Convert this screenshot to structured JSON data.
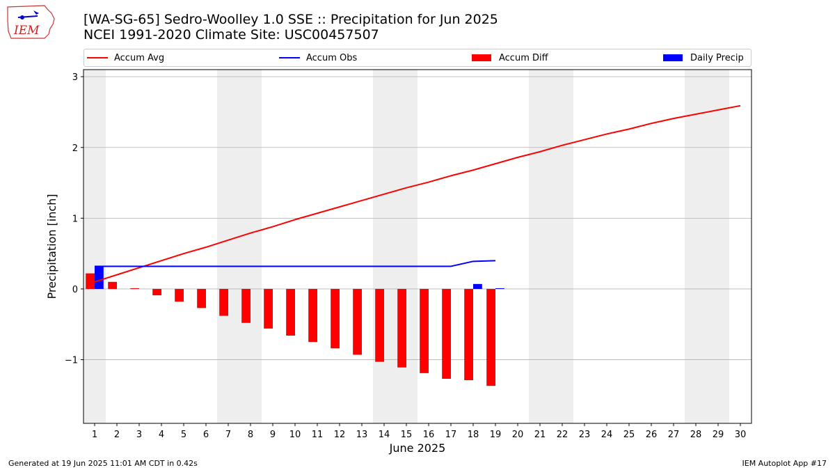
{
  "title_line1": "[WA-SG-65] Sedro-Woolley 1.0 SSE :: Precipitation for Jun 2025",
  "title_line2": "NCEI 1991-2020 Climate Site: USC00457507",
  "logo_text": "IEM",
  "footer_left": "Generated at 19 Jun 2025 11:01 AM CDT in 0.42s",
  "footer_right": "IEM Autoplot App #17",
  "colors": {
    "accum_avg": "#ff0000",
    "accum_obs": "#0000ff",
    "accum_diff": "#ff0000",
    "daily_precip": "#0000ff",
    "weekend_shade": "#eeeeee",
    "grid": "#b0b0b0"
  },
  "legend": [
    {
      "label": "Accum Avg",
      "kind": "line",
      "color": "#ff0000"
    },
    {
      "label": "Accum Obs",
      "kind": "line",
      "color": "#0000ff"
    },
    {
      "label": "Accum Diff",
      "kind": "patch",
      "color": "#ff0000"
    },
    {
      "label": "Daily Precip",
      "kind": "patch",
      "color": "#0000ff"
    }
  ],
  "chart_data": {
    "type": "bar",
    "xlabel": "June 2025",
    "ylabel": "Precipitation [inch]",
    "ylim": [
      -1.9,
      3.1
    ],
    "xlim": [
      0.5,
      30.5
    ],
    "yticks": [
      3,
      2,
      1,
      0,
      -1
    ],
    "ytick_labels": [
      "3",
      "2",
      "1",
      "0",
      "−1"
    ],
    "xticks": [
      1,
      2,
      3,
      4,
      5,
      6,
      7,
      8,
      9,
      10,
      11,
      12,
      13,
      14,
      15,
      16,
      17,
      18,
      19,
      20,
      21,
      22,
      23,
      24,
      25,
      26,
      27,
      28,
      29,
      30
    ],
    "grid": true,
    "weekend_shading": [
      [
        0.5,
        1.5
      ],
      [
        6.5,
        8.5
      ],
      [
        13.5,
        15.5
      ],
      [
        20.5,
        22.5
      ],
      [
        27.5,
        29.5
      ]
    ],
    "series": [
      {
        "name": "Accum Avg",
        "kind": "line",
        "x": [
          1,
          2,
          3,
          4,
          5,
          6,
          7,
          8,
          9,
          10,
          11,
          12,
          13,
          14,
          15,
          16,
          17,
          18,
          19,
          20,
          21,
          22,
          23,
          24,
          25,
          26,
          27,
          28,
          29,
          30
        ],
        "values": [
          0.1,
          0.2,
          0.3,
          0.4,
          0.5,
          0.59,
          0.69,
          0.79,
          0.88,
          0.98,
          1.07,
          1.16,
          1.25,
          1.34,
          1.43,
          1.51,
          1.6,
          1.68,
          1.77,
          1.86,
          1.94,
          2.03,
          2.11,
          2.19,
          2.26,
          2.34,
          2.41,
          2.47,
          2.53,
          2.59
        ]
      },
      {
        "name": "Accum Obs",
        "kind": "line",
        "x": [
          1,
          2,
          3,
          4,
          5,
          6,
          7,
          8,
          9,
          10,
          11,
          12,
          13,
          14,
          15,
          16,
          17,
          18,
          19
        ],
        "values": [
          0.32,
          0.32,
          0.32,
          0.32,
          0.32,
          0.32,
          0.32,
          0.32,
          0.32,
          0.32,
          0.32,
          0.32,
          0.32,
          0.32,
          0.32,
          0.32,
          0.32,
          0.39,
          0.4
        ]
      },
      {
        "name": "Accum Diff",
        "kind": "bar",
        "x": [
          1,
          2,
          3,
          4,
          5,
          6,
          7,
          8,
          9,
          10,
          11,
          12,
          13,
          14,
          15,
          16,
          17,
          18,
          19
        ],
        "values": [
          0.22,
          0.1,
          0.01,
          -0.09,
          -0.18,
          -0.27,
          -0.38,
          -0.48,
          -0.56,
          -0.66,
          -0.75,
          -0.84,
          -0.93,
          -1.03,
          -1.11,
          -1.19,
          -1.27,
          -1.29,
          -1.37
        ]
      },
      {
        "name": "Daily Precip",
        "kind": "bar",
        "x": [
          1,
          2,
          3,
          4,
          5,
          6,
          7,
          8,
          9,
          10,
          11,
          12,
          13,
          14,
          15,
          16,
          17,
          18,
          19
        ],
        "values": [
          0.32,
          0,
          0,
          0,
          0,
          0,
          0,
          0,
          0,
          0,
          0,
          0,
          0,
          0,
          0,
          0,
          0,
          0.07,
          0.01
        ]
      }
    ]
  }
}
